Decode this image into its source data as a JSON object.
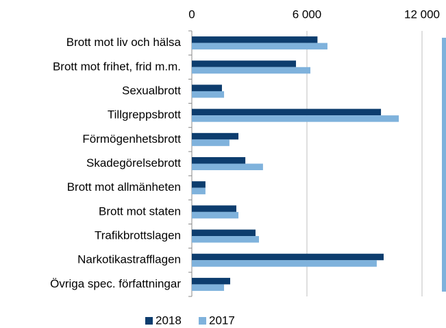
{
  "chart_data": {
    "type": "barh",
    "categories": [
      "Brott mot liv och hälsa",
      "Brott mot frihet, frid m.m.",
      "Sexualbrott",
      "Tillgreppsbrott",
      "Förmögenhetsbrott",
      "Skadegörelsebrott",
      "Brott mot allmänheten",
      "Brott mot staten",
      "Trafikbrottslagen",
      "Narkotikastrafflagen",
      "Övriga spec. författningar"
    ],
    "series": [
      {
        "name": "2018",
        "color": "#0d3d6e",
        "values": [
          6550,
          5430,
          1570,
          9860,
          2430,
          2790,
          710,
          2320,
          3320,
          10000,
          2000
        ]
      },
      {
        "name": "2017",
        "color": "#7fb2dc",
        "values": [
          7070,
          6180,
          1680,
          10790,
          1960,
          3710,
          710,
          2430,
          3500,
          9640,
          1680
        ]
      }
    ],
    "xlim": [
      0,
      12000
    ],
    "xticks": [
      0,
      {
        "value": 6000,
        "label": "6 000"
      },
      {
        "value": 12000,
        "label": "12 000"
      }
    ],
    "grid": true,
    "legend": "bottom"
  }
}
